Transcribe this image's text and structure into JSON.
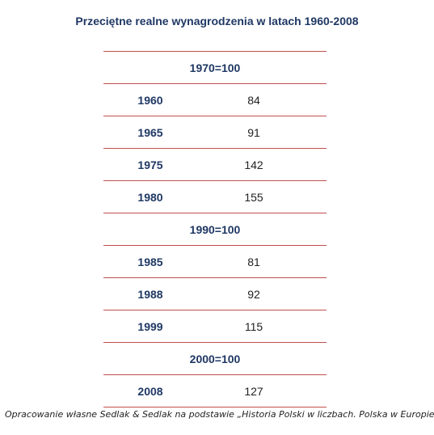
{
  "title": "Przeciętne realne wynagrodzenia w latach 1960-2008",
  "source": "Opracowanie własne Sedlak & Sedlak na podstawie „Historia  Polski w liczbach. Polska w Europie”",
  "colors": {
    "accent_text": "#1f3864",
    "rule": "#c0504d"
  },
  "chart_data": {
    "type": "table",
    "title": "Przeciętne realne wynagrodzenia w latach 1960-2008",
    "groups": [
      {
        "base": "1970=100",
        "rows": [
          {
            "year": "1960",
            "value": "84"
          },
          {
            "year": "1965",
            "value": "91"
          },
          {
            "year": "1975",
            "value": "142"
          },
          {
            "year": "1980",
            "value": "155"
          }
        ]
      },
      {
        "base": "1990=100",
        "rows": [
          {
            "year": "1985",
            "value": "81"
          },
          {
            "year": "1988",
            "value": "92"
          },
          {
            "year": "1999",
            "value": "115"
          }
        ]
      },
      {
        "base": "2000=100",
        "rows": [
          {
            "year": "2008",
            "value": "127"
          }
        ]
      }
    ]
  }
}
